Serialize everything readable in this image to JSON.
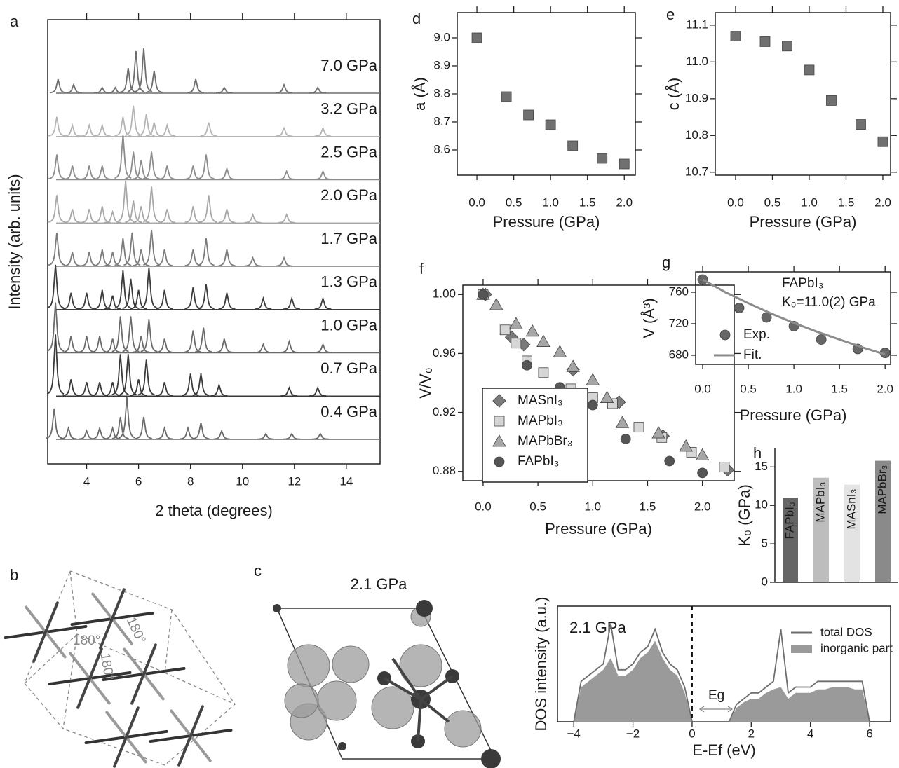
{
  "chart_data": [
    {
      "type": "spectra",
      "label": "a",
      "xlabel": "2 theta (degrees)",
      "ylabel": "Intensity (arb. units)",
      "xlim": [
        2.5,
        15.3
      ],
      "xticks": [
        4,
        6,
        8,
        10,
        12,
        14
      ],
      "series": [
        {
          "name": "7.0 GPa",
          "color": "#6e6e6e",
          "x": [
            2.9,
            3.5,
            4.6,
            5.1,
            5.6,
            5.9,
            6.2,
            6.6,
            8.2,
            9.3,
            11.6,
            12.9
          ],
          "values": [
            0.5,
            0.3,
            0.2,
            0.2,
            0.9,
            1.5,
            1.6,
            0.8,
            0.5,
            0.2,
            0.3,
            0.2
          ]
        },
        {
          "name": "3.2 GPa",
          "color": "#b4b4b4",
          "x": [
            2.85,
            3.45,
            4.1,
            4.6,
            5.4,
            5.8,
            6.3,
            6.6,
            7.1,
            8.7,
            11.6,
            13.1
          ],
          "values": [
            0.7,
            0.4,
            0.4,
            0.4,
            0.7,
            1.1,
            0.8,
            0.5,
            0.4,
            0.5,
            0.3,
            0.3
          ]
        },
        {
          "name": "2.5 GPa",
          "color": "#8c8c8c",
          "x": [
            2.85,
            3.45,
            4.1,
            4.6,
            5.4,
            5.8,
            6.1,
            6.5,
            7.1,
            8.1,
            8.6,
            9.4,
            11.7,
            13.1
          ],
          "values": [
            0.9,
            0.5,
            0.5,
            0.5,
            1.6,
            1.0,
            0.7,
            1.0,
            0.5,
            0.5,
            0.9,
            0.4,
            0.3,
            0.3
          ]
        },
        {
          "name": "2.0 GPa",
          "color": "#a8a8a8",
          "x": [
            2.85,
            3.45,
            4.1,
            4.6,
            5.0,
            5.5,
            5.8,
            6.1,
            6.5,
            7.1,
            8.1,
            8.7,
            9.4,
            10.4,
            11.7
          ],
          "values": [
            1.0,
            0.5,
            0.5,
            0.6,
            0.4,
            1.5,
            0.8,
            0.6,
            1.3,
            0.5,
            0.6,
            1.0,
            0.5,
            0.3,
            0.3
          ]
        },
        {
          "name": "1.7 GPa",
          "color": "#7c7c7c",
          "x": [
            2.85,
            3.45,
            4.1,
            4.6,
            5.0,
            5.4,
            5.75,
            6.1,
            6.5,
            7.0,
            8.1,
            8.6,
            9.4,
            10.4,
            11.6
          ],
          "values": [
            1.2,
            0.5,
            0.5,
            0.6,
            0.5,
            1.0,
            1.2,
            0.6,
            1.3,
            0.6,
            0.6,
            1.0,
            0.6,
            0.3,
            0.3
          ]
        },
        {
          "name": "1.3 GPa",
          "color": "#3c3c3c",
          "x": [
            2.8,
            3.4,
            4.0,
            4.6,
            5.0,
            5.4,
            5.7,
            6.0,
            6.4,
            7.0,
            8.1,
            8.6,
            9.4,
            10.8,
            11.9,
            13.1
          ],
          "values": [
            1.6,
            0.6,
            0.6,
            0.7,
            0.5,
            1.4,
            1.1,
            0.7,
            1.5,
            0.7,
            0.8,
            0.9,
            0.6,
            0.4,
            0.4,
            0.4
          ]
        },
        {
          "name": "1.0 GPa",
          "color": "#6a6a6a",
          "x": [
            2.8,
            3.4,
            4.0,
            4.5,
            5.0,
            5.3,
            5.7,
            6.1,
            6.4,
            7.0,
            8.1,
            8.5,
            9.3,
            10.8,
            11.8,
            13.1
          ],
          "values": [
            1.8,
            0.6,
            0.6,
            0.6,
            0.5,
            1.3,
            1.3,
            0.6,
            1.2,
            0.5,
            0.8,
            0.9,
            0.5,
            0.3,
            0.4,
            0.3
          ]
        },
        {
          "name": "0.7 GPa",
          "color": "#3a3a3a",
          "x": [
            2.8,
            3.4,
            4.0,
            4.5,
            5.0,
            5.3,
            5.6,
            6.0,
            6.3,
            7.0,
            8.0,
            8.4,
            9.1,
            11.8,
            12.9
          ],
          "values": [
            2.2,
            0.6,
            0.5,
            0.5,
            0.5,
            1.5,
            1.5,
            0.6,
            1.3,
            0.5,
            0.8,
            0.8,
            0.4,
            0.3,
            0.3
          ]
        },
        {
          "name": "0.4 GPa",
          "color": "#6a6a6a",
          "x": [
            2.75,
            3.3,
            4.0,
            4.5,
            5.0,
            5.3,
            5.55,
            6.2,
            7.0,
            7.9,
            8.4,
            9.2,
            10.9,
            11.9,
            13.0
          ],
          "values": [
            1.1,
            0.4,
            0.3,
            0.4,
            0.4,
            0.8,
            1.5,
            0.8,
            0.4,
            0.4,
            0.6,
            0.3,
            0.2,
            0.2,
            0.2
          ]
        }
      ]
    },
    {
      "type": "scatter",
      "label": "d",
      "xlabel": "Pressure (GPa)",
      "ylabel": "a (Å)",
      "xlim": [
        -0.267,
        2.15
      ],
      "ylim": [
        8.51,
        9.09
      ],
      "xticks": [
        {
          "value": 0,
          "label": "0.0"
        },
        0.5,
        {
          "value": 1,
          "label": "1.0"
        },
        1.5,
        {
          "value": 2,
          "label": "2.0"
        }
      ],
      "yticks": [
        8.6,
        8.7,
        8.8,
        8.9,
        {
          "value": 9,
          "label": "9.0"
        }
      ],
      "series": [
        {
          "marker": "square",
          "color": "#707070",
          "x": [
            0,
            0.4,
            0.7,
            1.0,
            1.3,
            1.7,
            2.0
          ],
          "values": [
            9.0,
            8.79,
            8.725,
            8.69,
            8.615,
            8.57,
            8.55
          ]
        }
      ]
    },
    {
      "type": "scatter",
      "label": "e",
      "xlabel": "Pressure (GPa)",
      "ylabel": "c (Å)",
      "xlim": [
        -0.276,
        2.105
      ],
      "ylim": [
        10.692,
        11.134
      ],
      "xticks": [
        {
          "value": 0,
          "label": "0.0"
        },
        0.5,
        {
          "value": 1,
          "label": "1.0"
        },
        1.5,
        {
          "value": 2,
          "label": "2.0"
        }
      ],
      "yticks": [
        10.7,
        10.8,
        10.9,
        {
          "value": 11,
          "label": "11.0"
        },
        11.1
      ],
      "series": [
        {
          "marker": "square",
          "color": "#707070",
          "x": [
            0,
            0.4,
            0.7,
            1.0,
            1.3,
            1.7,
            2.0
          ],
          "values": [
            11.07,
            11.055,
            11.043,
            10.978,
            10.895,
            10.83,
            10.783
          ]
        }
      ]
    },
    {
      "type": "scatter",
      "label": "f",
      "xlabel": "Pressure (GPa)",
      "ylabel": "V/V₀",
      "xlim": [
        -0.185,
        2.29
      ],
      "ylim": [
        0.8737,
        1.0063
      ],
      "xticks": [
        {
          "value": 0,
          "label": "0.0"
        },
        0.5,
        {
          "value": 1,
          "label": "1.0"
        },
        1.5,
        {
          "value": 2,
          "label": "2.0"
        }
      ],
      "yticks": [
        0.88,
        0.92,
        0.96,
        {
          "value": 1,
          "label": "1.00"
        }
      ],
      "legend": "lower left",
      "series": [
        {
          "name": "MASnI₃",
          "marker": "diamond",
          "color": "#7a7a7a",
          "x": [
            0.02,
            0.26,
            0.37,
            0.82,
            1.24,
            1.64,
            2.23
          ],
          "values": [
            1.0,
            0.971,
            0.966,
            0.949,
            0.927,
            0.904,
            0.881
          ]
        },
        {
          "name": "MAPbI₃",
          "marker": "square",
          "color": "#d6d6d6",
          "x": [
            0.0,
            0.2,
            0.3,
            0.4,
            0.55,
            0.8,
            1.0,
            1.18,
            1.42,
            1.63,
            1.9,
            2.2
          ],
          "values": [
            1.0,
            0.976,
            0.967,
            0.955,
            0.947,
            0.936,
            0.93,
            0.926,
            0.91,
            0.903,
            0.893,
            0.883
          ]
        },
        {
          "name": "MAPbBr₃",
          "marker": "triangle",
          "color": "#a6a6a6",
          "x": [
            0.0,
            0.12,
            0.3,
            0.45,
            0.55,
            0.7,
            0.82,
            1.0,
            1.13,
            1.27,
            1.6,
            1.85,
            2.0
          ],
          "values": [
            1.0,
            0.993,
            0.98,
            0.975,
            0.968,
            0.961,
            0.951,
            0.942,
            0.93,
            0.913,
            0.906,
            0.897,
            0.891
          ]
        },
        {
          "name": "FAPbI₃",
          "marker": "circle",
          "color": "#555555",
          "x": [
            0.0,
            0.4,
            0.7,
            1.0,
            1.3,
            1.7,
            2.0
          ],
          "values": [
            1.0,
            0.952,
            0.937,
            0.925,
            0.902,
            0.887,
            0.879
          ]
        }
      ]
    },
    {
      "type": "scatter",
      "label": "g",
      "xlabel": "Pressure (GPa)",
      "ylabel": "V (Å³)",
      "xlim": [
        -0.077,
        2.06
      ],
      "ylim": [
        668.4,
        785.8
      ],
      "xticks": [
        {
          "value": 0,
          "label": "0.0"
        },
        0.5,
        {
          "value": 1,
          "label": "1.0"
        },
        1.5,
        {
          "value": 2,
          "label": "2.0"
        }
      ],
      "yticks": [
        680,
        720,
        760
      ],
      "annotations": [
        "FAPbI₃",
        "K₀=11.0(2) GPa"
      ],
      "legend": "lower left",
      "series": [
        {
          "name": "Exp.",
          "marker": "circle",
          "color": "#666666",
          "x": [
            0,
            0.4,
            0.7,
            1.0,
            1.3,
            1.7,
            2.0
          ],
          "values": [
            776,
            740,
            728,
            717,
            700,
            688,
            683
          ]
        },
        {
          "name": "Fit.",
          "style": "line",
          "color": "#8c8c8c",
          "x": [
            0,
            0.25,
            0.5,
            0.75,
            1.0,
            1.25,
            1.5,
            1.75,
            2.0
          ],
          "values": [
            776,
            760,
            746,
            733,
            721,
            710,
            700,
            690,
            681
          ]
        }
      ]
    },
    {
      "type": "bar",
      "label": "h",
      "ylabel": "K₀ (GPa)",
      "ylim": [
        0,
        17.4
      ],
      "yticks": [
        0,
        5,
        10,
        15
      ],
      "categories": [
        "FAPbI₃",
        "MAPbI₃",
        "MASnI₃",
        "MAPbBr₃"
      ],
      "values": [
        11.0,
        13.6,
        12.7,
        15.8
      ],
      "colors": [
        "#666666",
        "#bdbdbd",
        "#e3e3e3",
        "#8a8a8a"
      ]
    },
    {
      "type": "line",
      "xlabel": "E-Ef (eV)",
      "ylabel": "DOS intensity (a.u.)",
      "xlim": [
        -4.55,
        6.71
      ],
      "ylim": [
        0,
        1
      ],
      "xticks": [
        {
          "value": -4,
          "label": "−4"
        },
        {
          "value": -2,
          "label": "−2"
        },
        0,
        2,
        4,
        6
      ],
      "vline": 0,
      "annotations": [
        "2.1 GPa",
        "Eg"
      ],
      "legend": "upper right",
      "x": [
        -4,
        -3.75,
        -3.5,
        -3.25,
        -3,
        -2.75,
        -2.5,
        -2.25,
        -2,
        -1.75,
        -1.5,
        -1.25,
        -1,
        -0.75,
        -0.5,
        -0.25,
        0,
        0.25,
        0.5,
        0.75,
        1,
        1.25,
        1.5,
        1.75,
        2,
        2.25,
        2.5,
        2.75,
        3,
        3.25,
        3.5,
        3.75,
        4,
        4.25,
        4.5,
        4.75,
        5,
        5.25,
        5.5,
        5.75,
        6
      ],
      "series": [
        {
          "name": "total DOS",
          "style": "line",
          "color": "#6e6e6e",
          "values": [
            0,
            0.35,
            0.4,
            0.45,
            0.5,
            0.85,
            0.45,
            0.45,
            0.5,
            0.6,
            0.65,
            0.8,
            0.6,
            0.5,
            0.45,
            0.3,
            0,
            0,
            0,
            0,
            0,
            0,
            0.15,
            0.2,
            0.25,
            0.25,
            0.3,
            0.35,
            0.8,
            0.25,
            0.3,
            0.3,
            0.3,
            0.35,
            0.35,
            0.35,
            0.35,
            0.35,
            0.35,
            0.35,
            0
          ]
        },
        {
          "name": "inorganic part",
          "style": "area",
          "color": "#9a9a9a",
          "values": [
            0,
            0.3,
            0.35,
            0.4,
            0.45,
            0.55,
            0.4,
            0.4,
            0.45,
            0.55,
            0.6,
            0.7,
            0.55,
            0.45,
            0.4,
            0.25,
            0,
            0,
            0,
            0,
            0,
            0,
            0.12,
            0.17,
            0.2,
            0.2,
            0.25,
            0.28,
            0.3,
            0.2,
            0.25,
            0.25,
            0.25,
            0.28,
            0.28,
            0.3,
            0.3,
            0.3,
            0.28,
            0.28,
            0
          ]
        }
      ]
    }
  ],
  "panels": [
    {
      "label": "b",
      "annotations": [
        "180°",
        "180°",
        "180°"
      ]
    },
    {
      "label": "c",
      "title": "2.1 GPa"
    }
  ]
}
